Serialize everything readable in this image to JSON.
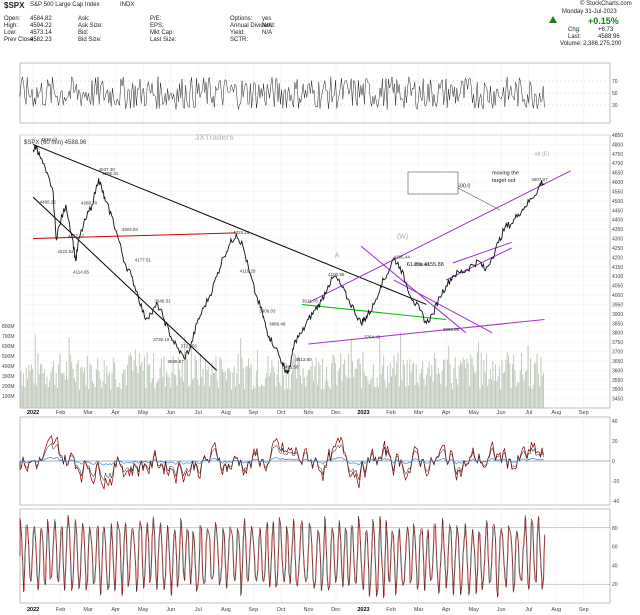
{
  "header": {
    "symbol": "$SPX",
    "name": "S&P 500 Large Cap Index",
    "exchange": "INDX",
    "source": "© StockCharts.com",
    "date": "Monday 31-Jul-2023",
    "change_pct": "+0.15%",
    "chg_label": "Chg:",
    "chg_value": "+6.73",
    "last_label": "Last:",
    "last_value": "4588.96",
    "volume_label": "Volume:",
    "volume_value": "2,386,275,200",
    "stats": [
      {
        "label": "Open:",
        "value": "4584.82"
      },
      {
        "label": "High:",
        "value": "4594.22"
      },
      {
        "label": "Low:",
        "value": "4573.14"
      },
      {
        "label": "Prev Close:",
        "value": "4582.23"
      }
    ],
    "stats2": [
      {
        "label": "Ask:",
        "value": ""
      },
      {
        "label": "Ask Size:",
        "value": ""
      },
      {
        "label": "Bid:",
        "value": ""
      },
      {
        "label": "Bid Size:",
        "value": ""
      }
    ],
    "stats3": [
      {
        "label": "P/E:",
        "value": ""
      },
      {
        "label": "EPS:",
        "value": ""
      },
      {
        "label": "Mkt Cap:",
        "value": ""
      },
      {
        "label": "Last Size:",
        "value": ""
      }
    ],
    "stats4": [
      {
        "label": "Options:",
        "value": "yes"
      },
      {
        "label": "Annual Dividend:",
        "value": "N/A"
      },
      {
        "label": "Yield:",
        "value": "N/A"
      },
      {
        "label": "SCTR:",
        "value": ""
      }
    ]
  },
  "chart_data": {
    "type": "line",
    "main_label": "$SPX (60 min) 4588.96",
    "watermark": "3XTraders",
    "x_tick_labels": [
      "2022",
      "Feb",
      "Mar",
      "Apr",
      "May",
      "Jun",
      "Jul",
      "Aug",
      "Sep",
      "Oct",
      "Nov",
      "Dec",
      "2023",
      "Feb",
      "Mar",
      "Apr",
      "May",
      "Jun",
      "Jul",
      "Aug",
      "Sep"
    ],
    "price_axis": {
      "min": 3400,
      "max": 4850,
      "ticks": [
        3450,
        3500,
        3550,
        3600,
        3650,
        3700,
        3750,
        3800,
        3850,
        3900,
        3950,
        4000,
        4050,
        4100,
        4150,
        4200,
        4250,
        4300,
        4350,
        4400,
        4450,
        4500,
        4550,
        4600,
        4650,
        4700,
        4750,
        4800,
        4850
      ]
    },
    "volume_axis_labels": [
      "100M",
      "200M",
      "300M",
      "400M",
      "500M",
      "600M",
      "700M",
      "800M"
    ],
    "price_path": [
      [
        0,
        4770
      ],
      [
        0.5,
        4790
      ],
      [
        1,
        4740
      ],
      [
        2,
        4650
      ],
      [
        3,
        4560
      ],
      [
        3.5,
        4300
      ],
      [
        4,
        4370
      ],
      [
        5,
        4480
      ],
      [
        6,
        4300
      ],
      [
        6.5,
        4180
      ],
      [
        7,
        4300
      ],
      [
        8,
        4400
      ],
      [
        9,
        4480
      ],
      [
        10,
        4620
      ],
      [
        10.5,
        4560
      ],
      [
        11,
        4500
      ],
      [
        12,
        4420
      ],
      [
        13,
        4300
      ],
      [
        14,
        4170
      ],
      [
        15,
        4100
      ],
      [
        16,
        4000
      ],
      [
        17,
        3880
      ],
      [
        18,
        3900
      ],
      [
        19,
        3950
      ],
      [
        20,
        3870
      ],
      [
        21,
        3780
      ],
      [
        22,
        3720
      ],
      [
        23,
        3666
      ],
      [
        24,
        3720
      ],
      [
        25,
        3850
      ],
      [
        26,
        3930
      ],
      [
        27,
        4000
      ],
      [
        28,
        4100
      ],
      [
        29,
        4200
      ],
      [
        30,
        4270
      ],
      [
        31,
        4326
      ],
      [
        32,
        4260
      ],
      [
        33,
        4120
      ],
      [
        34,
        4000
      ],
      [
        35,
        3900
      ],
      [
        35.5,
        3830
      ],
      [
        36,
        3780
      ],
      [
        37,
        3720
      ],
      [
        38,
        3640
      ],
      [
        38.5,
        3600
      ],
      [
        39,
        3590
      ],
      [
        39.5,
        3680
      ],
      [
        40,
        3760
      ],
      [
        41,
        3800
      ],
      [
        42,
        3870
      ],
      [
        43,
        3920
      ],
      [
        44,
        3970
      ],
      [
        45,
        4050
      ],
      [
        46,
        4100
      ],
      [
        47,
        4050
      ],
      [
        48,
        3980
      ],
      [
        49,
        3920
      ],
      [
        50,
        3850
      ],
      [
        50.5,
        3870
      ],
      [
        51,
        3890
      ],
      [
        52,
        3950
      ],
      [
        53,
        4050
      ],
      [
        54,
        4110
      ],
      [
        55,
        4195
      ],
      [
        56,
        4150
      ],
      [
        57,
        4050
      ],
      [
        58,
        3970
      ],
      [
        59,
        3920
      ],
      [
        60,
        3850
      ],
      [
        61,
        3900
      ],
      [
        62,
        3990
      ],
      [
        63,
        4050
      ],
      [
        64,
        4100
      ],
      [
        65,
        4120
      ],
      [
        66,
        4130
      ],
      [
        67,
        4160
      ],
      [
        68,
        4180
      ],
      [
        69,
        4130
      ],
      [
        70,
        4200
      ],
      [
        71,
        4280
      ],
      [
        72,
        4360
      ],
      [
        73,
        4380
      ],
      [
        74,
        4430
      ],
      [
        75,
        4470
      ],
      [
        76,
        4510
      ],
      [
        77,
        4560
      ],
      [
        77.5,
        4600
      ],
      [
        78,
        4588
      ]
    ],
    "price_labels": [
      {
        "t": "4818.62",
        "x": 1.2,
        "y": 4818
      },
      {
        "t": "4485.22",
        "x": 1.0,
        "y": 4485
      },
      {
        "t": "4595.31",
        "x": 10.5,
        "y": 4637
      },
      {
        "t": "4222.62",
        "x": 3.7,
        "y": 4222
      },
      {
        "t": "4457.67",
        "x": 5.3,
        "y": 4305
      },
      {
        "t": "4114.65",
        "x": 6.1,
        "y": 4114
      },
      {
        "t": "4288.70",
        "x": 7.3,
        "y": 4480
      },
      {
        "t": "4637.30",
        "x": 10.0,
        "y": 4660
      },
      {
        "t": "4303.04",
        "x": 13.5,
        "y": 4340
      },
      {
        "t": "4177.51",
        "x": 15.5,
        "y": 4177
      },
      {
        "t": "3946.31",
        "x": 18.5,
        "y": 3960
      },
      {
        "t": "3730.19",
        "x": 18.3,
        "y": 3756
      },
      {
        "t": "3721.56",
        "x": 22.5,
        "y": 3721
      },
      {
        "t": "3636.87",
        "x": 20.5,
        "y": 3640
      },
      {
        "t": "4325.28",
        "x": 30.5,
        "y": 4325
      },
      {
        "t": "4119.28",
        "x": 31.5,
        "y": 4119
      },
      {
        "t": "3906.03",
        "x": 34.5,
        "y": 3906
      },
      {
        "t": "3886.48",
        "x": 36.0,
        "y": 3838
      },
      {
        "t": "3911.78",
        "x": 41.0,
        "y": 3960
      },
      {
        "t": "3491.58",
        "x": 38.0,
        "y": 3610
      },
      {
        "t": "3613.60",
        "x": 40.0,
        "y": 3650
      },
      {
        "t": "4100.96",
        "x": 45.0,
        "y": 4100
      },
      {
        "t": "3764.49",
        "x": 50.5,
        "y": 3768
      },
      {
        "t": "4195.44",
        "x": 55.0,
        "y": 4195
      },
      {
        "t": "3808.86",
        "x": 62.5,
        "y": 3808
      },
      {
        "t": "4155.88",
        "x": 58.0,
        "y": 4155
      },
      {
        "t": "4607.07",
        "x": 76.0,
        "y": 4607
      }
    ],
    "annotations": [
      {
        "t": "moving the",
        "x": 70.0,
        "y": 4640
      },
      {
        "t": "target out",
        "x": 70.0,
        "y": 4600
      },
      {
        "t": "alt (E)",
        "x": 76.5,
        "y": 4740
      },
      {
        "t": "(W)",
        "x": 55.5,
        "y": 4300
      },
      {
        "t": "A",
        "x": 46.0,
        "y": 4200
      },
      {
        "t": "0.0% 4600.0",
        "x": 62.0,
        "y": 4572
      },
      {
        "t": "61.8% 4155.88",
        "x": 57.0,
        "y": 4155
      }
    ],
    "lines": [
      {
        "color": "#000000",
        "from": [
          0,
          4520
        ],
        "to": [
          28,
          3600
        ]
      },
      {
        "color": "#000000",
        "from": [
          0,
          4800
        ],
        "to": [
          60,
          3950
        ]
      },
      {
        "color": "#cc0000",
        "from": [
          0,
          4300
        ],
        "to": [
          31,
          4330
        ]
      },
      {
        "color": "#00bb00",
        "from": [
          41,
          3950
        ],
        "to": [
          63,
          3870
        ]
      },
      {
        "color": "#a030d0",
        "from": [
          42,
          3740
        ],
        "to": [
          78,
          3870
        ]
      },
      {
        "color": "#a030d0",
        "from": [
          42,
          3960
        ],
        "to": [
          82,
          4660
        ]
      },
      {
        "color": "#a030d0",
        "from": [
          63,
          4080
        ],
        "to": [
          73,
          4250
        ]
      },
      {
        "color": "#a030d0",
        "from": [
          64,
          4170
        ],
        "to": [
          73,
          4280
        ]
      },
      {
        "color": "#a030d0",
        "from": [
          50,
          4260
        ],
        "to": [
          66,
          3800
        ]
      },
      {
        "color": "#a030d0",
        "from": [
          55,
          4080
        ],
        "to": [
          70,
          3800
        ]
      }
    ],
    "rsi": {
      "levels": [
        30,
        50,
        70
      ],
      "labels": [
        "70",
        "50",
        "30"
      ]
    },
    "macd_axis_labels": [
      "40",
      "20",
      "0",
      "-20",
      "-40"
    ],
    "stoch_axis_labels": [
      "80",
      "60",
      "40",
      "20"
    ]
  }
}
